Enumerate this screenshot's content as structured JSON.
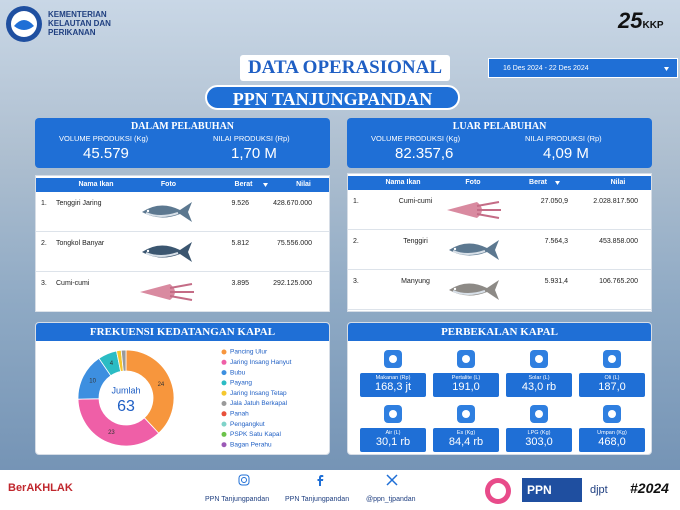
{
  "header": {
    "org": [
      "KEMENTERIAN",
      "KELAUTAN DAN",
      "PERIKANAN"
    ],
    "anniversary": "25",
    "badge": "KKP",
    "title": "DATA OPERASIONAL",
    "subtitle": "PPN TANJUNGPANDAN",
    "date_range": "16 Des 2024 - 22 Des 2024"
  },
  "summary": [
    {
      "title": "DALAM PELABUHAN",
      "volume_label": "VOLUME PRODUKSI (Kg)",
      "value_label": "NILAI PRODUKSI (Rp)",
      "volume": "45.579",
      "value": "1,70 M"
    },
    {
      "title": "LUAR PELABUHAN",
      "volume_label": "VOLUME PRODUKSI (Kg)",
      "value_label": "NILAI PRODUKSI (Rp)",
      "volume": "82.357,6",
      "value": "4,09 M"
    }
  ],
  "tables": [
    {
      "columns": [
        "Nama Ikan",
        "Foto",
        "Berat",
        "Nilai"
      ],
      "rows": [
        [
          "1.",
          "Tenggiri Jaring",
          "9.526",
          "428.670.000"
        ],
        [
          "2.",
          "Tongkol Banyar",
          "5.812",
          "75.556.000"
        ],
        [
          "3.",
          "Cumi-cumi",
          "3.895",
          "292.125.000"
        ]
      ]
    },
    {
      "columns": [
        "Nama Ikan",
        "Foto",
        "Berat",
        "Nilai"
      ],
      "rows": [
        [
          "1.",
          "Cumi-cumi",
          "27.050,9",
          "2.028.817.500"
        ],
        [
          "2.",
          "Tenggiri",
          "7.564,3",
          "453.858.000"
        ],
        [
          "3.",
          "Manyung",
          "5.931,4",
          "106.765.200"
        ]
      ]
    }
  ],
  "chart_data": {
    "type": "pie",
    "title": "FREKUENSI KEDATANGAN KAPAL",
    "center_label": "Jumlah",
    "center_value": 63,
    "categories": [
      "Pancing Ulur",
      "Jaring Insang Hanyut",
      "Bubu",
      "Payang",
      "Jaring Insang Tetap",
      "Jala Jatuh Berkapal",
      "Panah",
      "Pengangkut",
      "PSPK Satu Kapal",
      "Bagan Perahu"
    ],
    "values": [
      24,
      23,
      10,
      4,
      1,
      1,
      0,
      0,
      0,
      0
    ],
    "colors": [
      "#f7963d",
      "#ef5fa7",
      "#3d8fe0",
      "#2bbcc4",
      "#f5c72e",
      "#9a9a9a",
      "#e8503a",
      "#7fd3c9",
      "#6cc24a",
      "#9b59b6"
    ]
  },
  "supplies": {
    "title": "PERBEKALAN KAPAL",
    "items": [
      {
        "label": "Makanan (Rp)",
        "value": "168,3 jt"
      },
      {
        "label": "Pertalite (L)",
        "value": "191,0"
      },
      {
        "label": "Solar (L)",
        "value": "43,0 rb"
      },
      {
        "label": "Oli (L)",
        "value": "187,0"
      },
      {
        "label": "Air (L)",
        "value": "30,1 rb"
      },
      {
        "label": "Es (Kg)",
        "value": "84,4 rb"
      },
      {
        "label": "LPG (Kg)",
        "value": "303,0"
      },
      {
        "label": "Umpan (Kg)",
        "value": "468,0"
      }
    ]
  },
  "footer": {
    "brand": "BerAKHLAK",
    "instagram": "PPN Tanjungpandan",
    "facebook": "PPN Tanjungpandan",
    "x": "@ppn_tjpandan",
    "ppn": "PPN",
    "djpt": "djpt",
    "year": "#2024"
  }
}
